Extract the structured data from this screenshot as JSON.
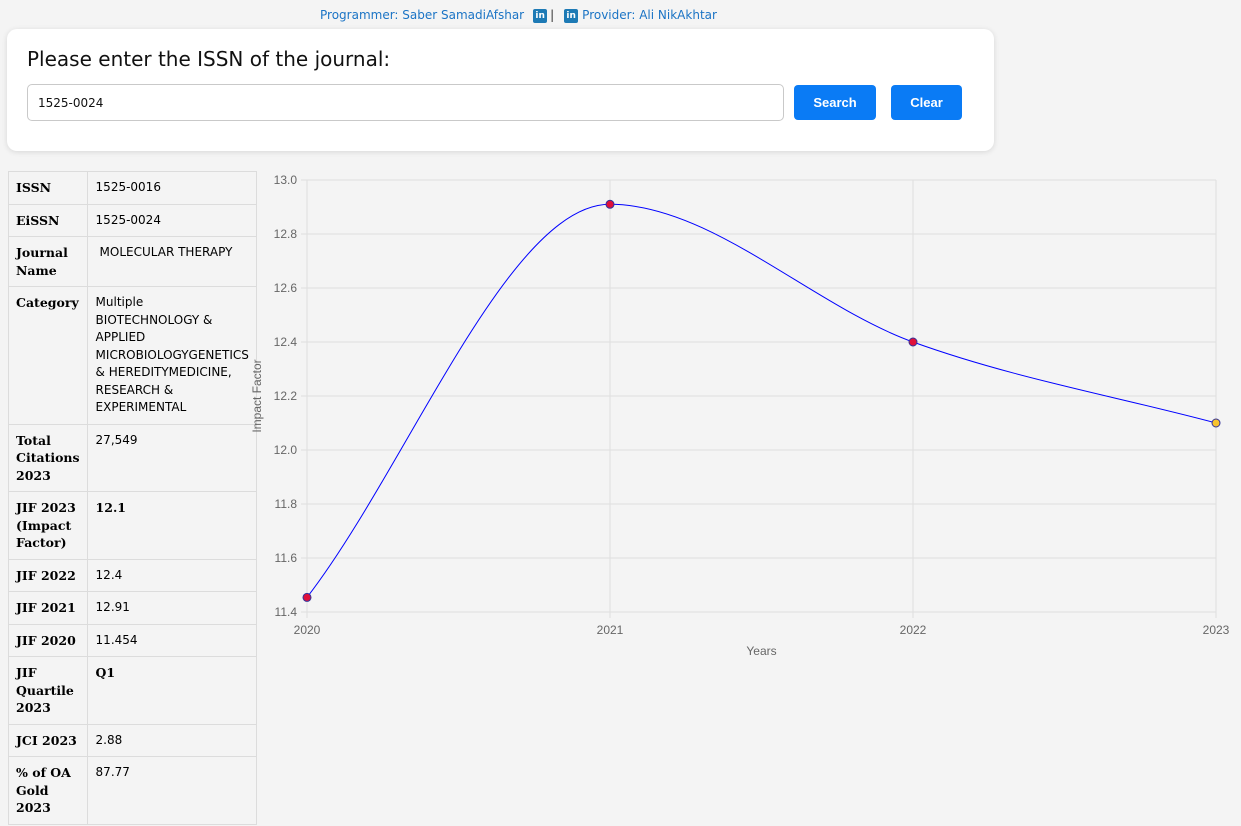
{
  "credits": {
    "programmer_label": "Programmer: Saber SamadiAfshar",
    "separator": "|",
    "provider_label": "Provider: Ali NikAkhtar",
    "icon": "linkedin-icon",
    "icon_text": "in"
  },
  "search": {
    "prompt": "Please enter the ISSN of the journal:",
    "value": "1525-0024",
    "search_label": "Search",
    "clear_label": "Clear"
  },
  "colors": {
    "accent": "#0a7bf5",
    "link": "#1b74c5",
    "line": "#0000ff",
    "point_fill": "#e0103a",
    "last_point_fill": "#f7c32e"
  },
  "info_rows": [
    {
      "key": "ISSN",
      "value": "1525-0016"
    },
    {
      "key": "EiSSN",
      "value": "1525-0024"
    },
    {
      "key": "Journal Name",
      "value": "MOLECULAR THERAPY"
    },
    {
      "key": "Category",
      "value": "Multiple BIOTECHNOLOGY & APPLIED MICROBIOLOGYGENETICS & HEREDITYMEDICINE, RESEARCH & EXPERIMENTAL"
    },
    {
      "key": "Total Citations 2023",
      "value": "27,549"
    },
    {
      "key": "JIF 2023 (Impact Factor)",
      "value": "12.1"
    },
    {
      "key": "JIF 2022",
      "value": "12.4"
    },
    {
      "key": "JIF 2021",
      "value": "12.91"
    },
    {
      "key": "JIF 2020",
      "value": "11.454"
    },
    {
      "key": "JIF Quartile 2023",
      "value": "Q1"
    },
    {
      "key": "JCI 2023",
      "value": "2.88"
    },
    {
      "key": "% of OA Gold 2023",
      "value": "87.77"
    }
  ],
  "chart_data": {
    "type": "line",
    "categories": [
      "2020",
      "2021",
      "2022",
      "2023"
    ],
    "values": [
      11.454,
      12.91,
      12.4,
      12.1
    ],
    "xlabel": "Years",
    "ylabel": "Impact Factor",
    "ylim": [
      11.4,
      13.0
    ],
    "yticks": [
      "13.0",
      "12.8",
      "12.6",
      "12.4",
      "12.2",
      "12.0",
      "11.8",
      "11.6",
      "11.4"
    ],
    "grid": true,
    "legend": "none",
    "curve": "smooth"
  }
}
